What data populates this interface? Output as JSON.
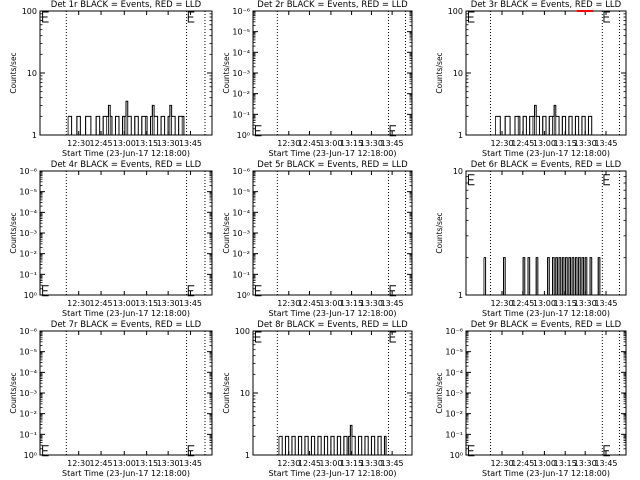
{
  "page": {
    "xlabel": "Start Time (23-Jun-17 12:18:00)",
    "ylabel": "Counts/sec"
  },
  "chart_data": [
    {
      "type": "line",
      "title": "Det 1r BLACK = Events, RED = LLD",
      "scale": "log",
      "ylim": [
        1,
        100
      ],
      "yticks": [
        {
          "v": 1,
          "t": "1"
        },
        {
          "v": 10,
          "t": "10"
        },
        {
          "v": 100,
          "t": "100"
        }
      ],
      "xticks": [
        "12:30",
        "12:45",
        "13:00",
        "13:15",
        "13:30",
        "13:45"
      ],
      "xlim": [
        12,
        110
      ],
      "dotted_x": [
        27,
        95.5,
        106
      ],
      "e_markers": [
        {
          "x": 13.5,
          "y": 80
        },
        {
          "x": 96.5,
          "y": 80
        }
      ],
      "series": [
        {
          "color": "#000000",
          "values": [
            [
              28,
              2
            ],
            [
              30,
              1
            ],
            [
              33,
              2
            ],
            [
              35,
              1
            ],
            [
              38,
              2
            ],
            [
              41,
              1
            ],
            [
              44,
              2
            ],
            [
              46,
              1
            ],
            [
              48,
              2
            ],
            [
              50,
              2
            ],
            [
              51,
              3
            ],
            [
              52,
              2
            ],
            [
              53,
              1
            ],
            [
              55,
              2
            ],
            [
              57,
              1
            ],
            [
              59,
              2
            ],
            [
              60,
              2
            ],
            [
              61,
              3.5
            ],
            [
              62,
              2
            ],
            [
              64,
              1
            ],
            [
              66,
              2
            ],
            [
              68,
              1
            ],
            [
              70,
              2
            ],
            [
              72,
              2
            ],
            [
              73,
              1
            ],
            [
              75,
              2
            ],
            [
              76,
              3
            ],
            [
              77,
              2
            ],
            [
              79,
              1
            ],
            [
              81,
              2
            ],
            [
              83,
              1
            ],
            [
              85,
              2
            ],
            [
              86,
              3
            ],
            [
              87,
              2
            ],
            [
              89,
              1
            ],
            [
              91,
              2
            ],
            [
              93,
              2
            ],
            [
              94,
              1
            ]
          ]
        }
      ]
    },
    {
      "type": "line",
      "title": "Det 2r BLACK = Events, RED = LLD",
      "scale": "log",
      "ylim": [
        1,
        1000000
      ],
      "yticks": [
        {
          "v": 1,
          "t": "10⁰"
        },
        {
          "v": 10,
          "t": "10⁻¹"
        },
        {
          "v": 100,
          "t": "10⁻²"
        },
        {
          "v": 1000,
          "t": "10⁻³"
        },
        {
          "v": 10000,
          "t": "10⁻⁴"
        },
        {
          "v": 100000,
          "t": "10⁻⁵"
        },
        {
          "v": 1000000,
          "t": "10⁻⁶"
        }
      ],
      "xticks": [
        "12:30",
        "12:45",
        "13:00",
        "13:15",
        "13:30",
        "13:45"
      ],
      "xlim": [
        12,
        110
      ],
      "dotted_x": [
        27,
        95.5,
        106
      ],
      "e_markers": [
        {
          "x": 13.5,
          "y": 1.6
        },
        {
          "x": 96.5,
          "y": 1.6
        }
      ],
      "series": []
    },
    {
      "type": "line",
      "title": "Det 3r BLACK = Events, RED = LLD",
      "scale": "log",
      "ylim": [
        1,
        100
      ],
      "yticks": [
        {
          "v": 1,
          "t": "1"
        },
        {
          "v": 10,
          "t": "10"
        },
        {
          "v": 100,
          "t": "100"
        }
      ],
      "xticks": [
        "12:30",
        "12:45",
        "13:00",
        "13:15",
        "13:30",
        "13:45"
      ],
      "xlim": [
        12,
        110
      ],
      "dotted_x": [
        27,
        95.5,
        106
      ],
      "e_markers": [
        {
          "x": 13.5,
          "y": 80
        },
        {
          "x": 96.5,
          "y": 80
        }
      ],
      "series": [
        {
          "color": "#000000",
          "values": [
            [
              30,
              2
            ],
            [
              33,
              1
            ],
            [
              36,
              2
            ],
            [
              39,
              1
            ],
            [
              42,
              2
            ],
            [
              44,
              2
            ],
            [
              45,
              1
            ],
            [
              47,
              2
            ],
            [
              49,
              1
            ],
            [
              51,
              2
            ],
            [
              53,
              2
            ],
            [
              54,
              3
            ],
            [
              55,
              2
            ],
            [
              57,
              1
            ],
            [
              59,
              2
            ],
            [
              61,
              1
            ],
            [
              63,
              2
            ],
            [
              65,
              2
            ],
            [
              66,
              3
            ],
            [
              67,
              2
            ],
            [
              69,
              1
            ],
            [
              71,
              2
            ],
            [
              73,
              1
            ],
            [
              75,
              2
            ],
            [
              77,
              1
            ],
            [
              79,
              2
            ],
            [
              81,
              1
            ],
            [
              83,
              2
            ],
            [
              85,
              1
            ],
            [
              87,
              2
            ],
            [
              89,
              1
            ]
          ]
        },
        {
          "color": "#ff0000",
          "values": [
            [
              80,
              100
            ],
            [
              90,
              100
            ]
          ]
        }
      ]
    },
    {
      "type": "line",
      "title": "Det 4r BLACK = Events, RED = LLD",
      "scale": "log",
      "ylim": [
        1,
        1000000
      ],
      "yticks": [
        {
          "v": 1,
          "t": "10⁰"
        },
        {
          "v": 10,
          "t": "10⁻¹"
        },
        {
          "v": 100,
          "t": "10⁻²"
        },
        {
          "v": 1000,
          "t": "10⁻³"
        },
        {
          "v": 10000,
          "t": "10⁻⁴"
        },
        {
          "v": 100000,
          "t": "10⁻⁵"
        },
        {
          "v": 1000000,
          "t": "10⁻⁶"
        }
      ],
      "xticks": [
        "12:30",
        "12:45",
        "13:00",
        "13:15",
        "13:30",
        "13:45"
      ],
      "xlim": [
        12,
        110
      ],
      "dotted_x": [
        27,
        95.5,
        106
      ],
      "e_markers": [
        {
          "x": 13.5,
          "y": 1.6
        },
        {
          "x": 96.5,
          "y": 1.6
        }
      ],
      "series": []
    },
    {
      "type": "line",
      "title": "Det 5r BLACK = Events, RED = LLD",
      "scale": "log",
      "ylim": [
        1,
        1000000
      ],
      "yticks": [
        {
          "v": 1,
          "t": "10⁰"
        },
        {
          "v": 10,
          "t": "10⁻¹"
        },
        {
          "v": 100,
          "t": "10⁻²"
        },
        {
          "v": 1000,
          "t": "10⁻³"
        },
        {
          "v": 10000,
          "t": "10⁻⁴"
        },
        {
          "v": 100000,
          "t": "10⁻⁵"
        },
        {
          "v": 1000000,
          "t": "10⁻⁶"
        }
      ],
      "xticks": [
        "12:30",
        "12:45",
        "13:00",
        "13:15",
        "13:30",
        "13:45"
      ],
      "xlim": [
        12,
        110
      ],
      "dotted_x": [
        27,
        95.5,
        106
      ],
      "e_markers": [
        {
          "x": 13.5,
          "y": 1.6
        },
        {
          "x": 96.5,
          "y": 1.6
        }
      ],
      "series": []
    },
    {
      "type": "line",
      "title": "Det 6r BLACK = Events, RED = LLD",
      "scale": "log",
      "ylim": [
        1,
        10
      ],
      "yticks": [
        {
          "v": 1,
          "t": "1"
        },
        {
          "v": 10,
          "t": "10"
        }
      ],
      "xticks": [
        "12:30",
        "12:45",
        "13:00",
        "13:15",
        "13:30",
        "13:45"
      ],
      "xlim": [
        12,
        110
      ],
      "dotted_x": [
        27,
        95.5,
        106
      ],
      "e_markers": [
        {
          "x": 13.5,
          "y": 8.5
        },
        {
          "x": 96.5,
          "y": 8.5
        }
      ],
      "series": [
        {
          "color": "#000000",
          "values": [
            [
              23,
              2
            ],
            [
              24,
              1
            ],
            [
              35,
              2
            ],
            [
              36,
              1
            ],
            [
              47,
              2
            ],
            [
              48,
              1
            ],
            [
              50,
              2
            ],
            [
              51,
              1
            ],
            [
              55,
              2
            ],
            [
              56,
              1
            ],
            [
              62,
              2
            ],
            [
              63,
              1
            ],
            [
              65,
              2
            ],
            [
              66,
              1
            ],
            [
              67,
              2
            ],
            [
              68,
              1
            ],
            [
              69,
              2
            ],
            [
              70,
              1
            ],
            [
              71,
              2
            ],
            [
              72,
              1
            ],
            [
              73,
              2
            ],
            [
              74,
              1
            ],
            [
              75,
              2
            ],
            [
              76,
              1
            ],
            [
              77,
              2
            ],
            [
              78,
              1
            ],
            [
              79,
              2
            ],
            [
              80,
              1
            ],
            [
              81,
              2
            ],
            [
              82,
              1
            ],
            [
              83,
              2
            ],
            [
              84,
              1
            ],
            [
              85,
              2
            ],
            [
              86,
              1
            ],
            [
              88,
              2
            ],
            [
              89,
              1
            ],
            [
              93,
              2
            ],
            [
              94,
              1
            ]
          ]
        }
      ]
    },
    {
      "type": "line",
      "title": "Det 7r BLACK = Events, RED = LLD",
      "scale": "log",
      "ylim": [
        1,
        1000000
      ],
      "yticks": [
        {
          "v": 1,
          "t": "10⁰"
        },
        {
          "v": 10,
          "t": "10⁻¹"
        },
        {
          "v": 100,
          "t": "10⁻²"
        },
        {
          "v": 1000,
          "t": "10⁻³"
        },
        {
          "v": 10000,
          "t": "10⁻⁴"
        },
        {
          "v": 100000,
          "t": "10⁻⁵"
        },
        {
          "v": 1000000,
          "t": "10⁻⁶"
        }
      ],
      "xticks": [
        "12:30",
        "12:45",
        "13:00",
        "13:15",
        "13:30",
        "13:45"
      ],
      "xlim": [
        12,
        110
      ],
      "dotted_x": [
        27,
        95.5,
        106
      ],
      "e_markers": [
        {
          "x": 13.5,
          "y": 1.6
        },
        {
          "x": 96.5,
          "y": 1.6
        }
      ],
      "series": []
    },
    {
      "type": "line",
      "title": "Det 8r BLACK = Events, RED = LLD",
      "scale": "log",
      "ylim": [
        1,
        100
      ],
      "yticks": [
        {
          "v": 1,
          "t": "1"
        },
        {
          "v": 10,
          "t": "10"
        },
        {
          "v": 100,
          "t": "100"
        }
      ],
      "xticks": [
        "12:30",
        "12:45",
        "13:00",
        "13:15",
        "13:30",
        "13:45"
      ],
      "xlim": [
        12,
        110
      ],
      "dotted_x": [
        27,
        95.5,
        106
      ],
      "e_markers": [
        {
          "x": 13.5,
          "y": 80
        },
        {
          "x": 96.5,
          "y": 80
        }
      ],
      "series": [
        {
          "color": "#000000",
          "values": [
            [
              28,
              2
            ],
            [
              30,
              1
            ],
            [
              32,
              2
            ],
            [
              34,
              1
            ],
            [
              36,
              2
            ],
            [
              38,
              1
            ],
            [
              40,
              2
            ],
            [
              42,
              1
            ],
            [
              44,
              2
            ],
            [
              46,
              1
            ],
            [
              48,
              2
            ],
            [
              50,
              1
            ],
            [
              52,
              2
            ],
            [
              54,
              1
            ],
            [
              56,
              2
            ],
            [
              58,
              1
            ],
            [
              60,
              2
            ],
            [
              62,
              1
            ],
            [
              64,
              2
            ],
            [
              66,
              1
            ],
            [
              68,
              2
            ],
            [
              70,
              1
            ],
            [
              71,
              2
            ],
            [
              72,
              3
            ],
            [
              73,
              2
            ],
            [
              75,
              1
            ],
            [
              77,
              2
            ],
            [
              79,
              1
            ],
            [
              81,
              2
            ],
            [
              83,
              1
            ],
            [
              85,
              2
            ],
            [
              87,
              1
            ],
            [
              89,
              2
            ],
            [
              91,
              1
            ],
            [
              93,
              2
            ],
            [
              94,
              1
            ]
          ]
        }
      ]
    },
    {
      "type": "line",
      "title": "Det 9r BLACK = Events, RED = LLD",
      "scale": "log",
      "ylim": [
        1,
        1000000
      ],
      "yticks": [
        {
          "v": 1,
          "t": "10⁰"
        },
        {
          "v": 10,
          "t": "10⁻¹"
        },
        {
          "v": 100,
          "t": "10⁻²"
        },
        {
          "v": 1000,
          "t": "10⁻³"
        },
        {
          "v": 10000,
          "t": "10⁻⁴"
        },
        {
          "v": 100000,
          "t": "10⁻⁵"
        },
        {
          "v": 1000000,
          "t": "10⁻⁶"
        }
      ],
      "xticks": [
        "12:30",
        "12:45",
        "13:00",
        "13:15",
        "13:30",
        "13:45"
      ],
      "xlim": [
        12,
        110
      ],
      "dotted_x": [
        27,
        95.5,
        106
      ],
      "e_markers": [
        {
          "x": 13.5,
          "y": 1.6
        },
        {
          "x": 96.5,
          "y": 1.6
        }
      ],
      "series": []
    }
  ]
}
